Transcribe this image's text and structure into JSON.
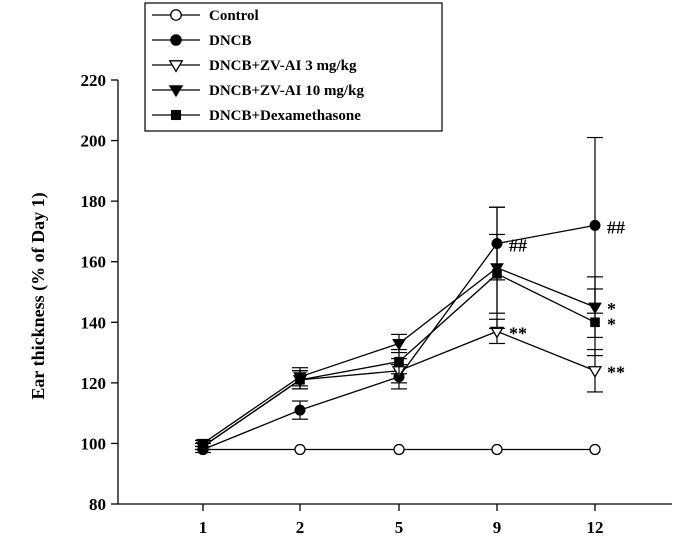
{
  "chart_data": {
    "type": "line",
    "ylabel": "Ear thickness (% of Day 1)",
    "xlabel": "",
    "categories": [
      "1",
      "2",
      "5",
      "9",
      "12"
    ],
    "yticks": [
      "80",
      "100",
      "120",
      "140",
      "160",
      "180",
      "200",
      "220"
    ],
    "ylim": [
      80,
      220
    ],
    "grid": false,
    "legend_position": "top-left",
    "series": [
      {
        "name": "Control",
        "marker": "circle-open",
        "values": [
          98,
          98,
          98,
          98,
          98
        ],
        "errors": [
          0,
          0,
          0,
          0,
          0
        ]
      },
      {
        "name": "DNCB",
        "marker": "circle-filled",
        "values": [
          98,
          111,
          122,
          166,
          172
        ],
        "errors": [
          1,
          3,
          4,
          12,
          29
        ]
      },
      {
        "name": "DNCB+ZV-AI 3 mg/kg",
        "marker": "triangle-down-open",
        "values": [
          99,
          121,
          124,
          137,
          124
        ],
        "errors": [
          1,
          3,
          4,
          4,
          7
        ]
      },
      {
        "name": "DNCB+ZV-AI 10 mg/kg",
        "marker": "triangle-down-filled",
        "values": [
          100,
          122,
          133,
          158,
          145
        ],
        "errors": [
          1,
          3,
          3,
          20,
          10
        ]
      },
      {
        "name": "DNCB+Dexamethasone",
        "marker": "square-filled",
        "values": [
          99,
          121,
          127,
          156,
          140
        ],
        "errors": [
          1,
          3,
          4,
          13,
          11
        ]
      }
    ],
    "annotations": [
      {
        "text": "##",
        "category": "9",
        "value": 166
      },
      {
        "text": "##",
        "category": "12",
        "value": 172
      },
      {
        "text": "*",
        "category": "12",
        "value": 145
      },
      {
        "text": "*",
        "category": "12",
        "value": 140
      },
      {
        "text": "**",
        "category": "9",
        "value": 137
      },
      {
        "text": "**",
        "category": "12",
        "value": 124
      }
    ]
  }
}
